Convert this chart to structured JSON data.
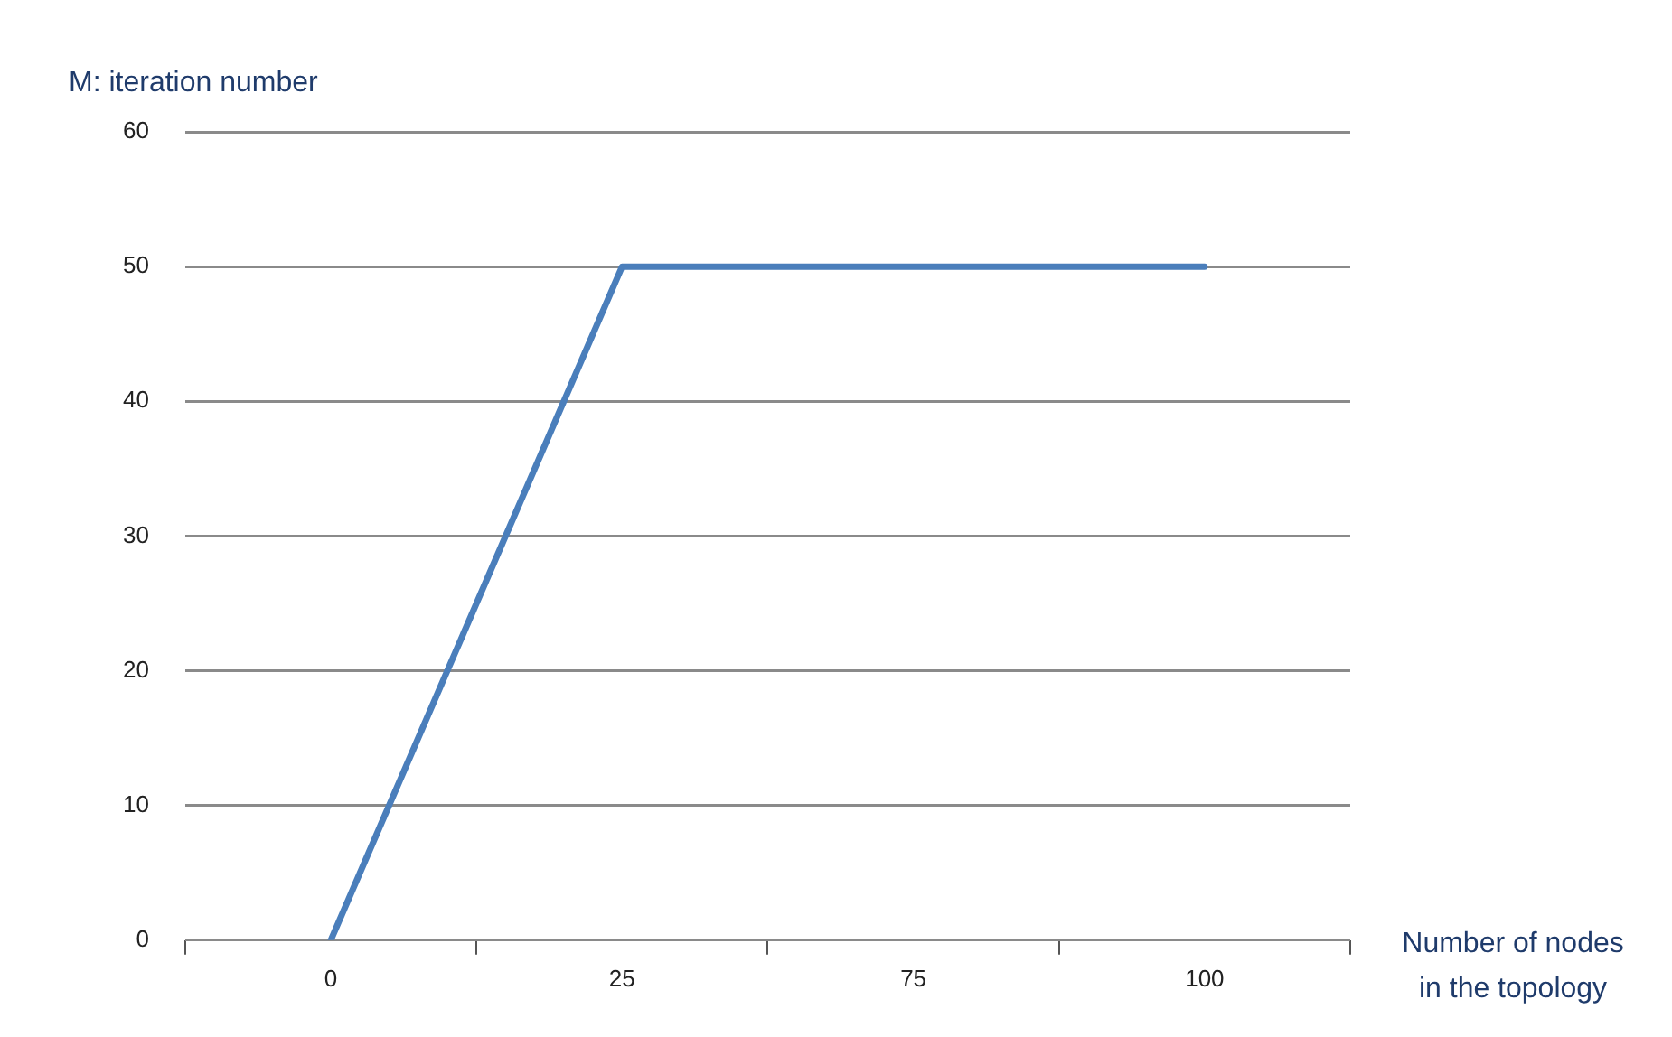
{
  "chart_data": {
    "type": "line",
    "xlabel": "Number of nodes in the topology",
    "ylabel": "M: iteration number",
    "categories": [
      "0",
      "25",
      "75",
      "100"
    ],
    "series": [
      {
        "color": "#4a7ebb",
        "values": [
          0,
          50,
          50,
          50
        ]
      }
    ],
    "ylim": [
      0,
      60
    ],
    "yticks": [
      0,
      10,
      20,
      30,
      40,
      50,
      60
    ],
    "grid": "y",
    "legend": false,
    "marker": "none",
    "line_style": "solid"
  }
}
